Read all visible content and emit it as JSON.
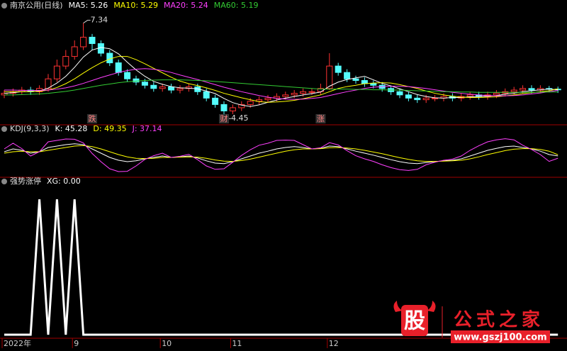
{
  "chart_data": [
    {
      "type": "candlestick",
      "title": "南京公用(日线)",
      "up_color": "#ff3232",
      "down_color": "#54fcfc",
      "open": [
        5.1,
        5.15,
        5.2,
        5.25,
        5.2,
        5.3,
        5.6,
        6.0,
        6.3,
        6.6,
        6.9,
        6.7,
        6.4,
        6.1,
        5.8,
        5.6,
        5.5,
        5.4,
        5.3,
        5.35,
        5.25,
        5.3,
        5.35,
        5.2,
        5.0,
        4.8,
        4.6,
        4.7,
        4.8,
        4.9,
        4.95,
        5.0,
        5.05,
        5.1,
        5.15,
        5.2,
        5.2,
        5.3,
        6.0,
        5.8,
        5.6,
        5.55,
        5.45,
        5.4,
        5.3,
        5.2,
        5.1,
        5.0,
        4.95,
        5.0,
        5.0,
        5.05,
        5.0,
        5.05,
        5.1,
        5.05,
        5.1,
        5.15,
        5.2,
        5.25,
        5.3,
        5.25,
        5.3,
        5.28
      ],
      "high": [
        5.25,
        5.3,
        5.35,
        5.35,
        5.4,
        5.75,
        6.2,
        6.5,
        6.8,
        7.34,
        7.0,
        6.8,
        6.5,
        6.2,
        5.9,
        5.7,
        5.6,
        5.5,
        5.45,
        5.45,
        5.4,
        5.45,
        5.45,
        5.3,
        5.1,
        4.9,
        4.8,
        4.9,
        5.0,
        5.05,
        5.1,
        5.15,
        5.2,
        5.25,
        5.3,
        5.3,
        5.45,
        6.4,
        6.1,
        5.9,
        5.7,
        5.65,
        5.55,
        5.5,
        5.4,
        5.3,
        5.2,
        5.1,
        5.1,
        5.1,
        5.15,
        5.15,
        5.15,
        5.2,
        5.2,
        5.2,
        5.25,
        5.3,
        5.35,
        5.4,
        5.4,
        5.4,
        5.38,
        5.36
      ],
      "low": [
        5.0,
        5.05,
        5.1,
        5.1,
        5.1,
        5.2,
        5.5,
        5.9,
        6.2,
        6.5,
        6.5,
        6.3,
        6.0,
        5.7,
        5.5,
        5.4,
        5.3,
        5.2,
        5.2,
        5.15,
        5.15,
        5.2,
        5.1,
        4.9,
        4.7,
        4.45,
        4.5,
        4.6,
        4.7,
        4.8,
        4.85,
        4.9,
        4.95,
        5.0,
        5.05,
        5.1,
        5.1,
        5.25,
        5.7,
        5.5,
        5.45,
        5.35,
        5.3,
        5.2,
        5.1,
        5.0,
        4.9,
        4.85,
        4.85,
        4.9,
        4.9,
        4.9,
        4.9,
        4.95,
        4.95,
        4.95,
        5.0,
        5.05,
        5.1,
        5.15,
        5.15,
        5.15,
        5.18,
        5.16
      ],
      "close": [
        5.15,
        5.2,
        5.25,
        5.2,
        5.3,
        5.6,
        6.0,
        6.3,
        6.6,
        6.9,
        6.7,
        6.4,
        6.1,
        5.8,
        5.6,
        5.5,
        5.4,
        5.3,
        5.35,
        5.25,
        5.3,
        5.35,
        5.2,
        5.0,
        4.8,
        4.6,
        4.7,
        4.8,
        4.9,
        4.95,
        5.0,
        5.05,
        5.1,
        5.15,
        5.2,
        5.2,
        5.3,
        6.0,
        5.8,
        5.6,
        5.55,
        5.45,
        5.4,
        5.3,
        5.2,
        5.1,
        5.0,
        4.95,
        5.0,
        5.0,
        5.05,
        5.0,
        5.05,
        5.1,
        5.05,
        5.1,
        5.15,
        5.2,
        5.25,
        5.3,
        5.25,
        5.3,
        5.28,
        5.26
      ],
      "series": [
        {
          "name": "MA5: 5.26",
          "color": "#ffffff",
          "values": [
            5.15,
            5.17,
            5.2,
            5.2,
            5.22,
            5.31,
            5.47,
            5.68,
            5.96,
            6.28,
            6.5,
            6.58,
            6.54,
            6.38,
            6.12,
            5.88,
            5.68,
            5.52,
            5.43,
            5.36,
            5.32,
            5.31,
            5.29,
            5.22,
            5.14,
            4.99,
            4.86,
            4.78,
            4.74,
            4.79,
            4.87,
            4.94,
            5.0,
            5.05,
            5.1,
            5.14,
            5.19,
            5.37,
            5.5,
            5.58,
            5.63,
            5.68,
            5.57,
            5.46,
            5.38,
            5.29,
            5.2,
            5.11,
            5.05,
            5.01,
            5.0,
            5.02,
            5.02,
            5.04,
            5.05,
            5.06,
            5.08,
            5.12,
            5.15,
            5.2,
            5.23,
            5.26,
            5.28,
            5.26
          ]
        },
        {
          "name": "MA10: 5.29",
          "color": "#ffff00",
          "values": [
            5.2,
            5.2,
            5.2,
            5.2,
            5.21,
            5.25,
            5.33,
            5.45,
            5.6,
            5.78,
            5.95,
            6.1,
            6.22,
            6.3,
            6.3,
            6.2,
            6.07,
            5.93,
            5.79,
            5.65,
            5.53,
            5.45,
            5.39,
            5.32,
            5.24,
            5.15,
            5.08,
            5.01,
            4.95,
            4.89,
            4.87,
            4.88,
            4.9,
            4.93,
            4.98,
            5.04,
            5.1,
            5.2,
            5.3,
            5.36,
            5.4,
            5.45,
            5.47,
            5.48,
            5.47,
            5.42,
            5.36,
            5.3,
            5.22,
            5.15,
            5.1,
            5.06,
            5.03,
            5.02,
            5.02,
            5.03,
            5.04,
            5.07,
            5.1,
            5.14,
            5.17,
            5.2,
            5.23,
            5.29
          ]
        },
        {
          "name": "MA20: 5.24",
          "color": "#ff40ff",
          "values": [
            5.25,
            5.25,
            5.24,
            5.24,
            5.24,
            5.25,
            5.28,
            5.32,
            5.38,
            5.46,
            5.55,
            5.64,
            5.72,
            5.8,
            5.86,
            5.9,
            5.92,
            5.9,
            5.86,
            5.8,
            5.72,
            5.65,
            5.58,
            5.5,
            5.42,
            5.34,
            5.27,
            5.2,
            5.14,
            5.08,
            5.03,
            4.99,
            4.97,
            4.96,
            4.97,
            4.99,
            5.02,
            5.08,
            5.14,
            5.2,
            5.25,
            5.3,
            5.34,
            5.36,
            5.37,
            5.37,
            5.36,
            5.33,
            5.3,
            5.26,
            5.22,
            5.18,
            5.15,
            5.12,
            5.1,
            5.08,
            5.07,
            5.07,
            5.08,
            5.1,
            5.13,
            5.16,
            5.2,
            5.24
          ]
        },
        {
          "name": "MA60: 5.19",
          "color": "#33cc33",
          "values": [
            5.1,
            5.1,
            5.11,
            5.12,
            5.13,
            5.15,
            5.18,
            5.21,
            5.25,
            5.3,
            5.35,
            5.4,
            5.44,
            5.48,
            5.51,
            5.53,
            5.55,
            5.56,
            5.57,
            5.57,
            5.57,
            5.56,
            5.55,
            5.54,
            5.52,
            5.5,
            5.48,
            5.46,
            5.44,
            5.42,
            5.4,
            5.38,
            5.36,
            5.34,
            5.32,
            5.3,
            5.28,
            5.28,
            5.28,
            5.28,
            5.27,
            5.27,
            5.26,
            5.26,
            5.25,
            5.25,
            5.24,
            5.23,
            5.22,
            5.21,
            5.2,
            5.2,
            5.19,
            5.19,
            5.18,
            5.18,
            5.18,
            5.18,
            5.18,
            5.18,
            5.18,
            5.19,
            5.19,
            5.19
          ]
        }
      ],
      "markers": [
        null,
        null,
        null,
        null,
        null,
        null,
        null,
        null,
        null,
        null,
        "跌",
        null,
        null,
        null,
        null,
        null,
        null,
        null,
        null,
        null,
        null,
        null,
        null,
        null,
        null,
        "财",
        null,
        null,
        null,
        null,
        null,
        null,
        null,
        null,
        null,
        null,
        "涨",
        null,
        null,
        null,
        null,
        null,
        null,
        null,
        null,
        null,
        null,
        null,
        null,
        null,
        null,
        null,
        null,
        null,
        null,
        null,
        null,
        null,
        null,
        null,
        null,
        null,
        null,
        null
      ],
      "ylim": [
        4.3,
        7.75
      ]
    },
    {
      "type": "line",
      "title": "KDJ(9,3,3)",
      "series": [
        {
          "name": "K: 45.28",
          "color": "#ffffff",
          "values": [
            60,
            70,
            65,
            55,
            60,
            75,
            80,
            85,
            88,
            85,
            70,
            55,
            40,
            30,
            25,
            28,
            35,
            40,
            45,
            40,
            42,
            45,
            38,
            28,
            20,
            18,
            25,
            35,
            45,
            55,
            62,
            70,
            75,
            78,
            75,
            70,
            72,
            80,
            78,
            70,
            62,
            55,
            48,
            40,
            32,
            25,
            20,
            18,
            22,
            25,
            28,
            30,
            35,
            45,
            55,
            65,
            72,
            78,
            80,
            75,
            70,
            62,
            50,
            45.28
          ]
        },
        {
          "name": "D: 49.35",
          "color": "#ffff00",
          "values": [
            55,
            60,
            62,
            60,
            60,
            65,
            70,
            75,
            80,
            82,
            78,
            70,
            60,
            50,
            42,
            37,
            36,
            37,
            40,
            40,
            41,
            42,
            41,
            37,
            31,
            27,
            26,
            29,
            34,
            41,
            48,
            55,
            62,
            67,
            70,
            70,
            71,
            74,
            75,
            73,
            70,
            65,
            59,
            53,
            46,
            39,
            33,
            28,
            26,
            26,
            27,
            28,
            30,
            35,
            42,
            50,
            57,
            64,
            69,
            71,
            71,
            68,
            62,
            49.35
          ]
        },
        {
          "name": "J: 37.14",
          "color": "#ff40ff",
          "values": [
            70,
            90,
            71,
            45,
            60,
            95,
            100,
            105,
            104,
            91,
            54,
            25,
            0,
            -10,
            -9,
            10,
            33,
            46,
            55,
            40,
            44,
            51,
            32,
            10,
            -2,
            0,
            23,
            47,
            67,
            83,
            90,
            100,
            101,
            100,
            85,
            70,
            74,
            92,
            84,
            64,
            46,
            35,
            26,
            14,
            4,
            -3,
            -6,
            -2,
            14,
            23,
            30,
            34,
            45,
            65,
            81,
            95,
            102,
            106,
            102,
            83,
            68,
            50,
            26,
            37.14
          ]
        }
      ],
      "ylim": [
        -20,
        120
      ]
    },
    {
      "type": "line",
      "title": "强势涨停",
      "categories": [
        "2022年",
        null,
        null,
        null,
        null,
        null,
        null,
        null,
        "9",
        null,
        null,
        null,
        null,
        null,
        null,
        null,
        null,
        null,
        "10",
        null,
        null,
        null,
        null,
        null,
        null,
        null,
        "11",
        null,
        null,
        null,
        null,
        null,
        null,
        null,
        null,
        null,
        null,
        "12",
        null,
        null,
        null,
        null,
        null,
        null,
        null,
        null,
        null,
        null,
        null,
        null,
        null,
        null,
        null,
        null,
        null,
        null,
        null,
        null,
        null,
        null,
        null,
        null,
        null,
        null
      ],
      "series": [
        {
          "name": "XG: 0.00",
          "color": "#ffffff",
          "values": [
            0,
            0,
            0,
            0,
            1,
            0,
            1,
            0,
            1,
            0,
            0,
            0,
            0,
            0,
            0,
            0,
            0,
            0,
            0,
            0,
            0,
            0,
            0,
            0,
            0,
            0,
            0,
            0,
            0,
            0,
            0,
            0,
            0,
            0,
            0,
            0,
            0,
            0,
            0,
            0,
            0,
            0,
            0,
            0,
            0,
            0,
            0,
            0,
            0,
            0,
            0,
            0,
            0,
            0,
            0,
            0,
            0,
            0,
            0,
            0,
            0,
            0,
            0,
            0
          ]
        }
      ],
      "ylim": [
        0,
        1.1
      ]
    }
  ],
  "watermark": {
    "logo": "股",
    "name": "公式之家",
    "url": "www.gszj100.com"
  }
}
